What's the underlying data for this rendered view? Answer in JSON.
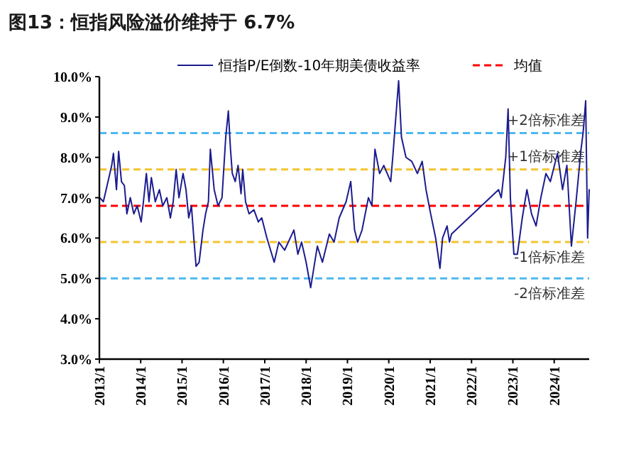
{
  "chart_data": {
    "type": "line",
    "title": "图13：恒指风险溢价维持于 6.7%",
    "series": [
      {
        "name": "恒指P/E倒数-10年期美债收益率",
        "color": "#1c1c8f",
        "x": [
          "2013-01-05",
          "2013-02-05",
          "2013-03-10",
          "2013-04-20",
          "2013-05-05",
          "2013-06-01",
          "2013-06-20",
          "2013-07-15",
          "2013-08-10",
          "2013-09-01",
          "2013-10-01",
          "2013-11-01",
          "2013-12-01",
          "2014-01-05",
          "2014-01-25",
          "2014-02-20",
          "2014-03-15",
          "2014-04-05",
          "2014-05-10",
          "2014-06-15",
          "2014-07-15",
          "2014-08-20",
          "2014-09-20",
          "2014-10-15",
          "2014-11-10",
          "2014-12-05",
          "2015-01-10",
          "2015-02-05",
          "2015-03-01",
          "2015-03-25",
          "2015-04-15",
          "2015-05-05",
          "2015-06-01",
          "2015-07-05",
          "2015-07-28",
          "2015-08-22",
          "2015-09-08",
          "2015-10-12",
          "2015-11-15",
          "2015-12-20",
          "2016-01-22",
          "2016-02-14",
          "2016-03-04",
          "2016-03-20",
          "2016-04-15",
          "2016-05-10",
          "2016-06-05",
          "2016-06-20",
          "2016-07-15",
          "2016-08-15",
          "2016-09-27",
          "2016-11-05",
          "2016-12-05",
          "2017-01-20",
          "2017-03-25",
          "2017-05-05",
          "2017-06-25",
          "2017-09-15",
          "2017-10-20",
          "2017-11-22",
          "2018-01-01",
          "2018-02-10",
          "2018-04-10",
          "2018-05-25",
          "2018-07-25",
          "2018-09-05",
          "2018-10-20",
          "2018-12-20",
          "2019-01-30",
          "2019-03-05",
          "2019-04-01",
          "2019-05-10",
          "2019-07-05",
          "2019-08-05",
          "2019-09-01",
          "2019-10-12",
          "2019-11-18",
          "2020-01-18",
          "2020-02-05",
          "2020-03-28",
          "2020-04-22",
          "2020-06-01",
          "2020-07-22",
          "2020-09-10",
          "2020-10-22",
          "2020-11-25",
          "2021-01-05",
          "2021-02-18",
          "2021-03-28",
          "2021-04-20",
          "2021-05-30",
          "2021-06-20",
          "2021-07-08",
          "2022-08-28",
          "2022-09-20",
          "2022-10-30",
          "2022-11-20",
          "2022-12-10",
          "2023-01-10",
          "2023-02-10",
          "2023-03-25",
          "2023-05-05",
          "2023-06-15",
          "2023-07-25",
          "2023-09-05",
          "2023-10-20",
          "2023-11-28",
          "2024-01-30",
          "2024-03-15",
          "2024-04-22",
          "2024-06-01",
          "2024-07-12",
          "2024-08-25",
          "2024-09-12",
          "2024-10-05",
          "2024-10-22",
          "2024-11-05"
        ],
        "values": [
          7.0,
          6.9,
          7.3,
          7.8,
          8.1,
          7.2,
          8.15,
          7.4,
          7.3,
          6.6,
          7.0,
          6.6,
          6.8,
          6.4,
          6.9,
          7.6,
          6.9,
          7.5,
          6.9,
          7.2,
          6.8,
          7.0,
          6.5,
          6.9,
          7.7,
          7.0,
          7.6,
          7.2,
          6.5,
          6.8,
          6.0,
          5.3,
          5.4,
          6.2,
          6.6,
          6.9,
          8.2,
          7.2,
          6.8,
          7.0,
          8.5,
          9.15,
          8.2,
          7.6,
          7.4,
          7.8,
          7.1,
          7.7,
          6.9,
          6.6,
          6.7,
          6.4,
          6.5,
          6.0,
          5.4,
          5.9,
          5.7,
          6.2,
          5.6,
          5.9,
          5.4,
          4.77,
          5.8,
          5.4,
          6.1,
          5.9,
          6.5,
          6.9,
          7.4,
          6.2,
          5.9,
          6.2,
          7.0,
          6.8,
          8.2,
          7.6,
          7.8,
          7.4,
          8.0,
          9.9,
          8.5,
          8.0,
          7.9,
          7.6,
          7.9,
          7.2,
          6.6,
          6.0,
          5.25,
          6.0,
          6.3,
          5.9,
          6.1,
          7.2,
          7.0,
          8.0,
          9.2,
          7.0,
          5.6,
          5.6,
          6.5,
          7.2,
          6.6,
          6.3,
          7.0,
          7.6,
          7.4,
          8.1,
          7.2,
          7.8,
          5.8,
          6.9,
          8.2,
          8.6,
          9.4,
          6.0,
          7.2
        ]
      }
    ],
    "xlim": [
      "2013-01-01",
      "2024-11-05"
    ],
    "xticks": [
      {
        "value": "2013-01-01",
        "label": "2013/1"
      },
      {
        "value": "2014-01-01",
        "label": "2014/1"
      },
      {
        "value": "2015-01-01",
        "label": "2015/1"
      },
      {
        "value": "2016-01-01",
        "label": "2016/1"
      },
      {
        "value": "2017-01-01",
        "label": "2017/1"
      },
      {
        "value": "2018-01-01",
        "label": "2018/1"
      },
      {
        "value": "2019-01-01",
        "label": "2019/1"
      },
      {
        "value": "2020-01-01",
        "label": "2020/1"
      },
      {
        "value": "2021-01-01",
        "label": "2021/1"
      },
      {
        "value": "2022-01-01",
        "label": "2022/1"
      },
      {
        "value": "2023-01-01",
        "label": "2023/1"
      },
      {
        "value": "2024-01-01",
        "label": "2024/1"
      }
    ],
    "ylim": [
      3,
      10
    ],
    "yticks": [
      {
        "value": 3,
        "label": "3.0%"
      },
      {
        "value": 4,
        "label": "4.0%"
      },
      {
        "value": 5,
        "label": "5.0%"
      },
      {
        "value": 6,
        "label": "6.0%"
      },
      {
        "value": 7,
        "label": "7.0%"
      },
      {
        "value": 8,
        "label": "8.0%"
      },
      {
        "value": 9,
        "label": "9.0%"
      },
      {
        "value": 10,
        "label": "10.0%"
      }
    ],
    "ref_lines": [
      {
        "axis": "y",
        "value": 8.6,
        "label": "+2倍标准差",
        "color": "#4db8f0",
        "line_style": "dashed"
      },
      {
        "axis": "y",
        "value": 7.7,
        "label": "+1倍标准差",
        "color": "#f5c431",
        "line_style": "dashed"
      },
      {
        "axis": "y",
        "value": 6.8,
        "label": "均值",
        "color": "#ff0000",
        "line_style": "dashed"
      },
      {
        "axis": "y",
        "value": 5.9,
        "label": "-1倍标准差",
        "color": "#f5c431",
        "line_style": "dashed"
      },
      {
        "axis": "y",
        "value": 5.0,
        "label": "-2倍标准差",
        "color": "#4db8f0",
        "line_style": "dashed"
      }
    ],
    "legend": "top",
    "grid": false,
    "line_style": "solid"
  }
}
